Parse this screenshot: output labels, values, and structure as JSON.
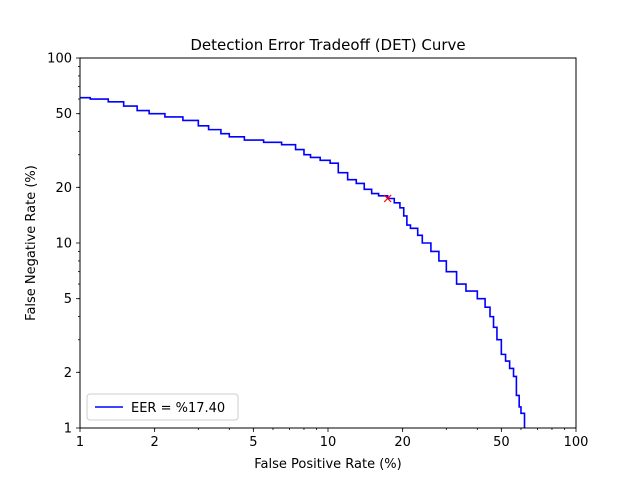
{
  "chart_data": {
    "type": "line",
    "title": "Detection Error Tradeoff (DET) Curve",
    "xlabel": "False Positive Rate (%)",
    "ylabel": "False Negative Rate (%)",
    "xscale": "log",
    "yscale": "log",
    "xlim": [
      1,
      100
    ],
    "ylim": [
      1,
      100
    ],
    "x_ticks": [
      1,
      2,
      5,
      10,
      20,
      50,
      100
    ],
    "y_ticks": [
      1,
      2,
      5,
      10,
      20,
      50,
      100
    ],
    "grid": false,
    "legend_position": "lower-left",
    "series": [
      {
        "name": "EER = %17.40",
        "color": "#0000ff",
        "style": "step",
        "x": [
          1.0,
          1.1,
          1.3,
          1.5,
          1.7,
          1.9,
          2.2,
          2.6,
          3.0,
          3.3,
          3.7,
          4.0,
          4.6,
          5.5,
          6.5,
          7.4,
          8.0,
          8.5,
          9.3,
          10.2,
          11.0,
          12.0,
          13.0,
          14.0,
          15.0,
          16.0,
          17.4,
          18.5,
          19.5,
          20.2,
          20.8,
          21.5,
          23.0,
          24.0,
          26.0,
          28.0,
          30.0,
          33.0,
          36.0,
          40.0,
          43.0,
          45.0,
          46.5,
          48.0,
          50.0,
          52.0,
          54.0,
          56.0,
          57.5,
          59.0,
          60.0,
          62.0
        ],
        "y": [
          61,
          60,
          58,
          55,
          52,
          50,
          48,
          46,
          43,
          41,
          39,
          37.5,
          36,
          35,
          34,
          32,
          30,
          29,
          28,
          27,
          24,
          22,
          21,
          19.5,
          18.5,
          18,
          17.4,
          16.5,
          15.5,
          14,
          12.5,
          12,
          11,
          10,
          9,
          8,
          7,
          6,
          5.5,
          5,
          4.5,
          4,
          3.5,
          3,
          2.5,
          2.3,
          2.1,
          1.9,
          1.5,
          1.3,
          1.2,
          1.0
        ]
      }
    ],
    "markers": [
      {
        "name": "eer-point",
        "x": 17.4,
        "y": 17.4,
        "symbol": "x",
        "color": "#ff0000"
      }
    ]
  }
}
